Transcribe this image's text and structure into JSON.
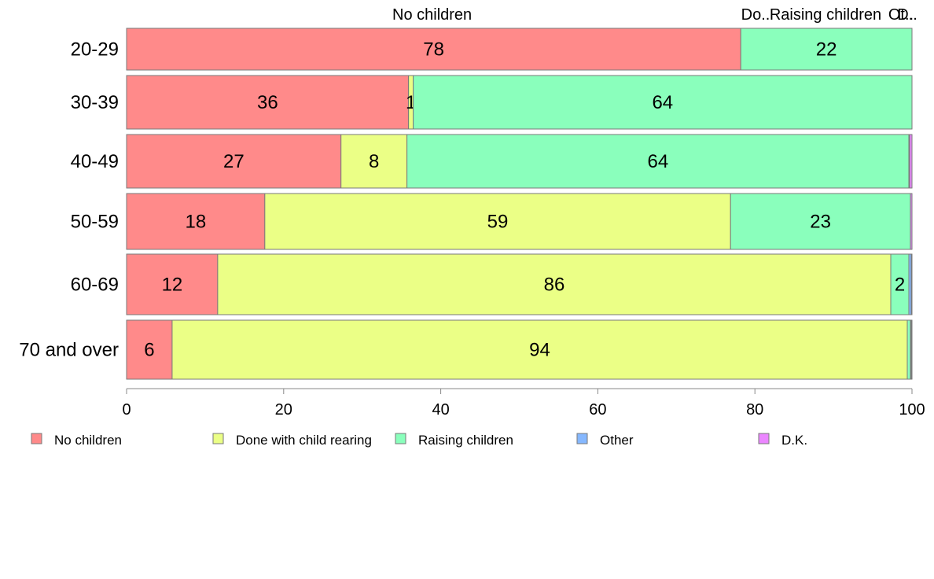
{
  "chart_data": {
    "type": "bar",
    "orientation": "horizontal",
    "stacked": true,
    "title": "",
    "xlabel": "",
    "ylabel": "",
    "xlim": [
      0,
      100
    ],
    "x_ticks": [
      "0",
      "20",
      "40",
      "60",
      "80",
      "100"
    ],
    "categories": [
      "20-29",
      "30-39",
      "40-49",
      "50-59",
      "60-69",
      "70 and over"
    ],
    "top_labels": [
      "No children",
      "Do..",
      "Raising children",
      "Ot..",
      "D.."
    ],
    "series": [
      {
        "name": "No children",
        "color": "#ff8a8a",
        "values": [
          78.2,
          35.9,
          27.3,
          17.6,
          11.6,
          5.8
        ]
      },
      {
        "name": "Done with child rearing",
        "color": "#ebff86",
        "values": [
          0.0,
          0.6,
          8.4,
          59.3,
          85.7,
          93.6
        ]
      },
      {
        "name": "Raising children",
        "color": "#8affbc",
        "values": [
          21.8,
          63.5,
          63.9,
          22.9,
          2.3,
          0.4
        ]
      },
      {
        "name": "Other",
        "color": "#86b8ff",
        "values": [
          0.0,
          0.0,
          0.1,
          0.0,
          0.3,
          0.1
        ]
      },
      {
        "name": "D.K.",
        "color": "#eb86ff",
        "values": [
          0.0,
          0.0,
          0.3,
          0.2,
          0.1,
          0.1
        ]
      }
    ],
    "segment_labels": [
      [
        "78",
        "",
        "22",
        "",
        ""
      ],
      [
        "36",
        "1",
        "64",
        "",
        ""
      ],
      [
        "27",
        "8",
        "64",
        "",
        ""
      ],
      [
        "18",
        "59",
        "23",
        "",
        ""
      ],
      [
        "12",
        "86",
        "2",
        "",
        ""
      ],
      [
        "6",
        "94",
        "",
        "",
        ""
      ]
    ],
    "legend": {
      "position": "bottom",
      "items": [
        "No children",
        "Done with child rearing",
        "Raising children",
        "Other",
        "D.K."
      ]
    },
    "grid": false
  }
}
